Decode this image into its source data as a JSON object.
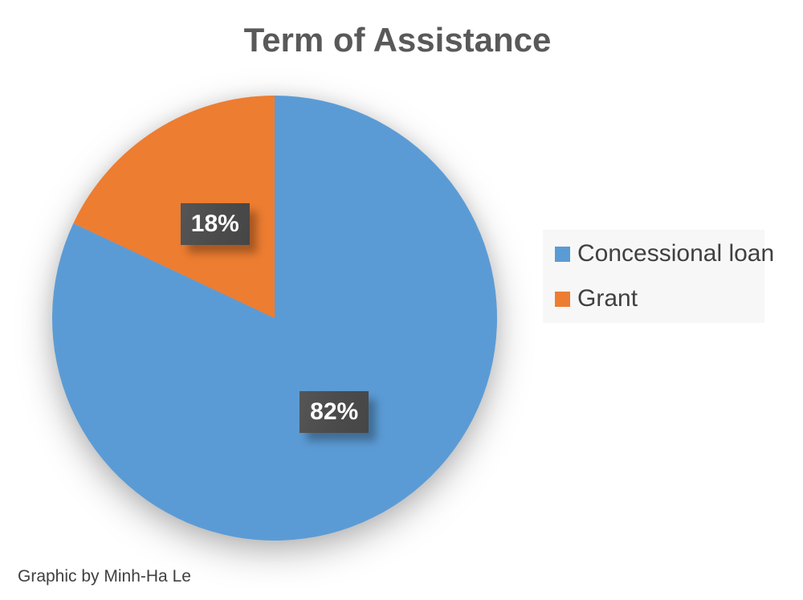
{
  "title": "Term of Assistance",
  "credit": "Graphic by Minh-Ha Le",
  "styles": {
    "title_color": "#595959",
    "legend_text_color": "#404040",
    "legend_panel_bg": "#f7f7f7",
    "data_label_bg": "#4b4b4b",
    "data_label_text": "#ffffff"
  },
  "legend": {
    "position": "right",
    "items": [
      {
        "label": "Concessional loan",
        "color": "#5B9BD5"
      },
      {
        "label": "Grant",
        "color": "#ED7D31"
      }
    ]
  },
  "chart_data": {
    "type": "pie",
    "title": "Term of Assistance",
    "categories": [
      "Concessional loan",
      "Grant"
    ],
    "values": [
      82,
      18
    ],
    "data_labels": [
      "82%",
      "18%"
    ],
    "colors": [
      "#5B9BD5",
      "#ED7D31"
    ],
    "start_angle_deg": 0,
    "direction": "clockwise",
    "legend_position": "right",
    "label_radius_fraction": 0.5
  }
}
